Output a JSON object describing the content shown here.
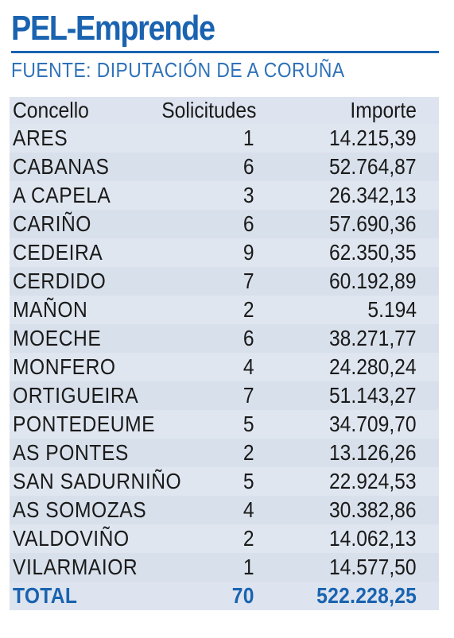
{
  "header": {
    "title": "PEL-Emprende",
    "source": "FUENTE: DIPUTACIÓN DE A CORUÑA"
  },
  "table": {
    "columns": [
      "Concello",
      "Solicitudes",
      "Importe"
    ],
    "rows": [
      {
        "concello": "ARES",
        "solicitudes": "1",
        "importe": "14.215,39"
      },
      {
        "concello": "CABANAS",
        "solicitudes": "6",
        "importe": "52.764,87"
      },
      {
        "concello": "A CAPELA",
        "solicitudes": "3",
        "importe": "26.342,13"
      },
      {
        "concello": "CARIÑO",
        "solicitudes": "6",
        "importe": "57.690,36"
      },
      {
        "concello": "CEDEIRA",
        "solicitudes": "9",
        "importe": "62.350,35"
      },
      {
        "concello": "CERDIDO",
        "solicitudes": "7",
        "importe": "60.192,89"
      },
      {
        "concello": "MAÑON",
        "solicitudes": "2",
        "importe": "5.194"
      },
      {
        "concello": "MOECHE",
        "solicitudes": "6",
        "importe": "38.271,77"
      },
      {
        "concello": "MONFERO",
        "solicitudes": "4",
        "importe": "24.280,24"
      },
      {
        "concello": "ORTIGUEIRA",
        "solicitudes": "7",
        "importe": "51.143,27"
      },
      {
        "concello": "PONTEDEUME",
        "solicitudes": "5",
        "importe": "34.709,70"
      },
      {
        "concello": "AS PONTES",
        "solicitudes": "2",
        "importe": "13.126,26"
      },
      {
        "concello": "SAN SADURNIÑO",
        "solicitudes": "5",
        "importe": "22.924,53"
      },
      {
        "concello": "AS SOMOZAS",
        "solicitudes": "4",
        "importe": "30.382,86"
      },
      {
        "concello": "VALDOVIÑO",
        "solicitudes": "2",
        "importe": "14.062,13"
      },
      {
        "concello": "VILARMAIOR",
        "solicitudes": "1",
        "importe": "14.577,50"
      }
    ],
    "total": {
      "label": "TOTAL",
      "solicitudes": "70",
      "importe": "522.228,25"
    }
  },
  "colors": {
    "accent": "#1a63b0",
    "table_bg": "#dde4ef"
  }
}
